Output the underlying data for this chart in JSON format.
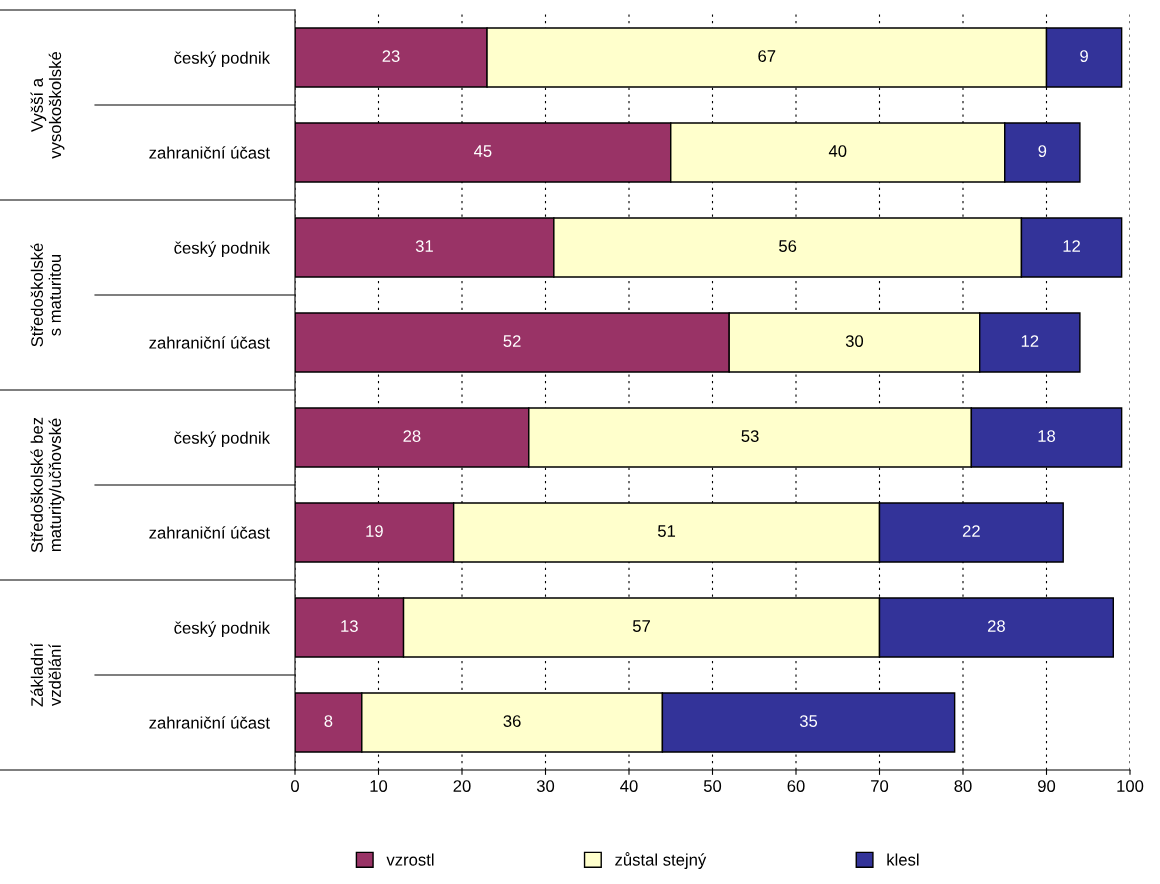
{
  "chart_data": {
    "type": "bar",
    "orientation": "horizontal",
    "stacked": true,
    "categories": [
      "český podnik",
      "zahraniční účast",
      "český podnik",
      "zahraniční účast",
      "český podnik",
      "zahraniční účast",
      "český podnik",
      "zahraniční účast"
    ],
    "series": [
      {
        "name": "vzrostl",
        "color": "#993366",
        "values": [
          23,
          45,
          31,
          52,
          28,
          19,
          13,
          8
        ]
      },
      {
        "name": "zůstal stejný",
        "color": "#ffffcc",
        "values": [
          67,
          40,
          56,
          30,
          53,
          51,
          57,
          36
        ]
      },
      {
        "name": "klesl",
        "color": "#333399",
        "values": [
          9,
          9,
          12,
          12,
          18,
          22,
          28,
          35
        ]
      }
    ],
    "annotations": [
      "Vyšší a vysokoškolské",
      "Středoškolské s maturitou",
      "Středoškolské bez maturity/učňovské",
      "Základní vzdělání"
    ],
    "xlim": [
      0,
      100
    ],
    "xticks": [
      0,
      10,
      20,
      30,
      40,
      50,
      60,
      70,
      80,
      90,
      100
    ],
    "grid": "x",
    "legend": "bottom",
    "data_labels": true
  }
}
